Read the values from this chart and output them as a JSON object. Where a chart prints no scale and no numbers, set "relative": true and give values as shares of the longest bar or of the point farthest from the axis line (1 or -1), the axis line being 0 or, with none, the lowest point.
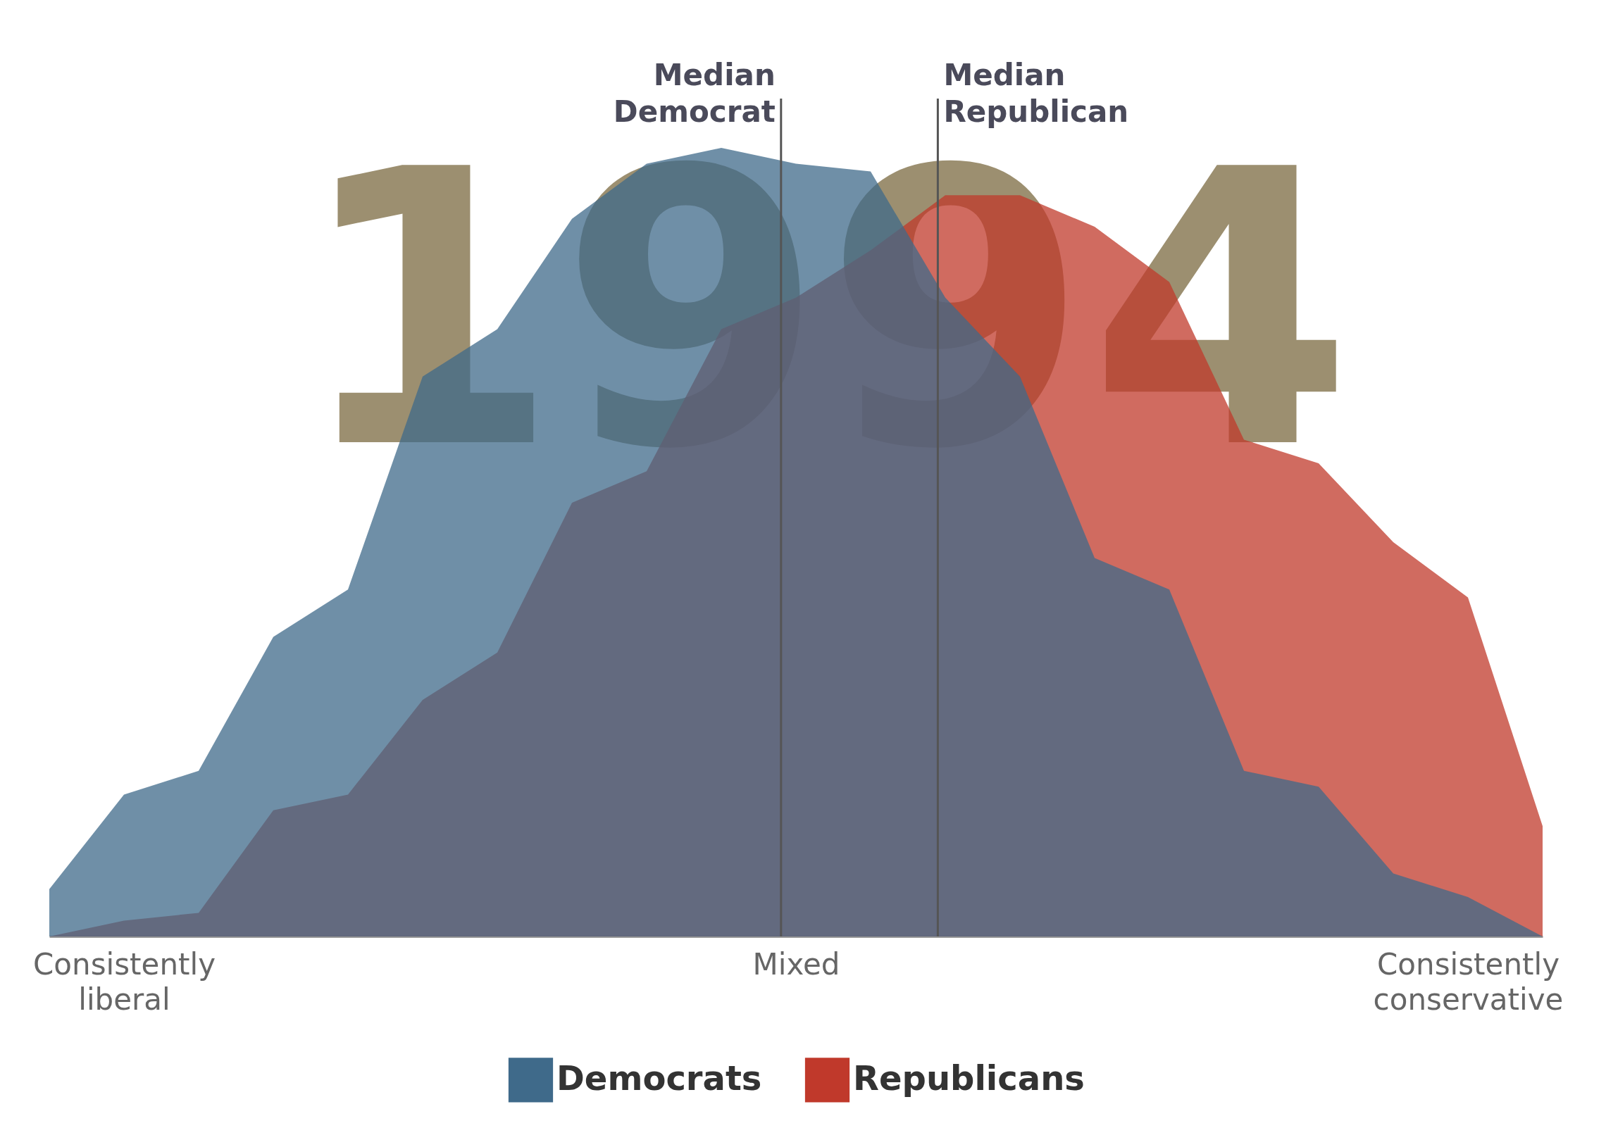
{
  "chart_data": {
    "type": "area",
    "relative": true,
    "categories": [
      null,
      "Consistently liberal",
      null,
      null,
      null,
      null,
      null,
      null,
      null,
      null,
      "Mixed",
      null,
      null,
      null,
      null,
      null,
      null,
      null,
      null,
      "Consistently conservative",
      null
    ],
    "series": [
      {
        "name": "Democrats",
        "color": "#3f6a8a",
        "values": [
          0.06,
          0.18,
          0.21,
          0.38,
          0.44,
          0.71,
          0.77,
          0.91,
          0.98,
          1.0,
          0.98,
          0.97,
          0.81,
          0.71,
          0.48,
          0.44,
          0.21,
          0.19,
          0.08,
          0.05,
          0
        ]
      },
      {
        "name": "Republicans",
        "color": "#c0392b",
        "values": [
          0,
          0.02,
          0.03,
          0.16,
          0.18,
          0.3,
          0.36,
          0.55,
          0.59,
          0.77,
          0.81,
          0.87,
          0.94,
          0.94,
          0.9,
          0.83,
          0.63,
          0.6,
          0.5,
          0.43,
          0.14
        ]
      }
    ],
    "annotations": [
      "1994",
      "Median Democrat",
      "Median Republican"
    ],
    "legend": "bottom"
  }
}
